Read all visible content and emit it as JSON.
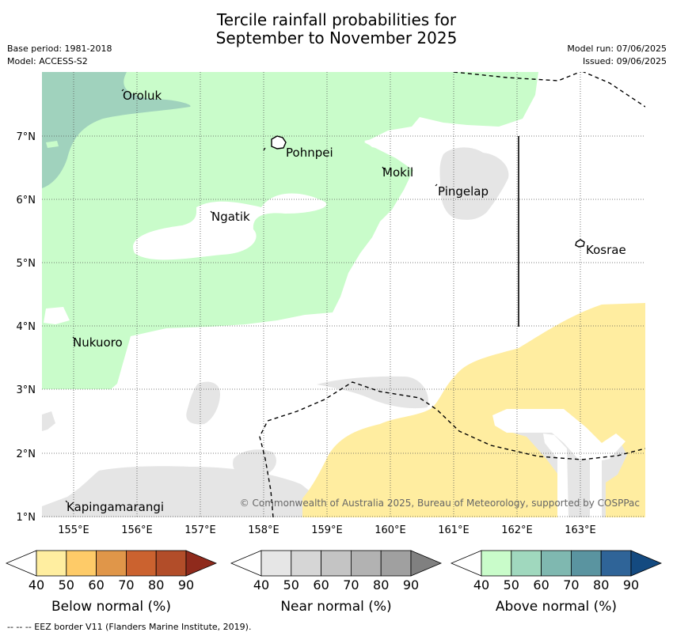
{
  "title": {
    "line1": "Tercile rainfall probabilities for",
    "line2": "September to November 2025"
  },
  "meta_left": {
    "base_period": "Base period: 1981-2018",
    "model": "Model: ACCESS-S2"
  },
  "meta_right": {
    "model_run": "Model run: 07/06/2025",
    "issued": "Issued: 09/06/2025"
  },
  "map": {
    "lon_ticks": [
      "155°E",
      "156°E",
      "157°E",
      "158°E",
      "159°E",
      "160°E",
      "161°E",
      "162°E",
      "163°E"
    ],
    "lat_ticks": [
      "7°N",
      "6°N",
      "5°N",
      "4°N",
      "3°N",
      "2°N",
      "1°N"
    ],
    "places": [
      "Oroluk",
      "Pohnpei",
      "Mokil",
      "Pingelap",
      "Ngatik",
      "Kosrae",
      "Nukuoro",
      "Kapingamarangi"
    ],
    "copyright": "© Commonwealth of Australia 2025, Bureau of Meteorology, supported by COSPPac"
  },
  "colors": {
    "below": [
      "#ffeea0",
      "#fecb68",
      "#e09649",
      "#cb622f",
      "#b24d29",
      "#8f2a1c"
    ],
    "near": [
      "#e6e6e6",
      "#d6d6d6",
      "#c4c4c4",
      "#b2b2b2",
      "#a0a0a0",
      "#808080"
    ],
    "above": [
      "#c9fcca",
      "#a0d8be",
      "#7fb8b0",
      "#5a94a0",
      "#2f6498",
      "#144a80"
    ]
  },
  "colorbars": [
    {
      "label": "Below normal (%)",
      "ticks": [
        "40",
        "50",
        "60",
        "70",
        "80",
        "90"
      ]
    },
    {
      "label": "Near normal (%)",
      "ticks": [
        "40",
        "50",
        "60",
        "70",
        "80",
        "90"
      ]
    },
    {
      "label": "Above normal (%)",
      "ticks": [
        "40",
        "50",
        "60",
        "70",
        "80",
        "90"
      ]
    }
  ],
  "footnote": "--  --  -- EEZ border V11 (Flanders Marine Institute, 2019)."
}
